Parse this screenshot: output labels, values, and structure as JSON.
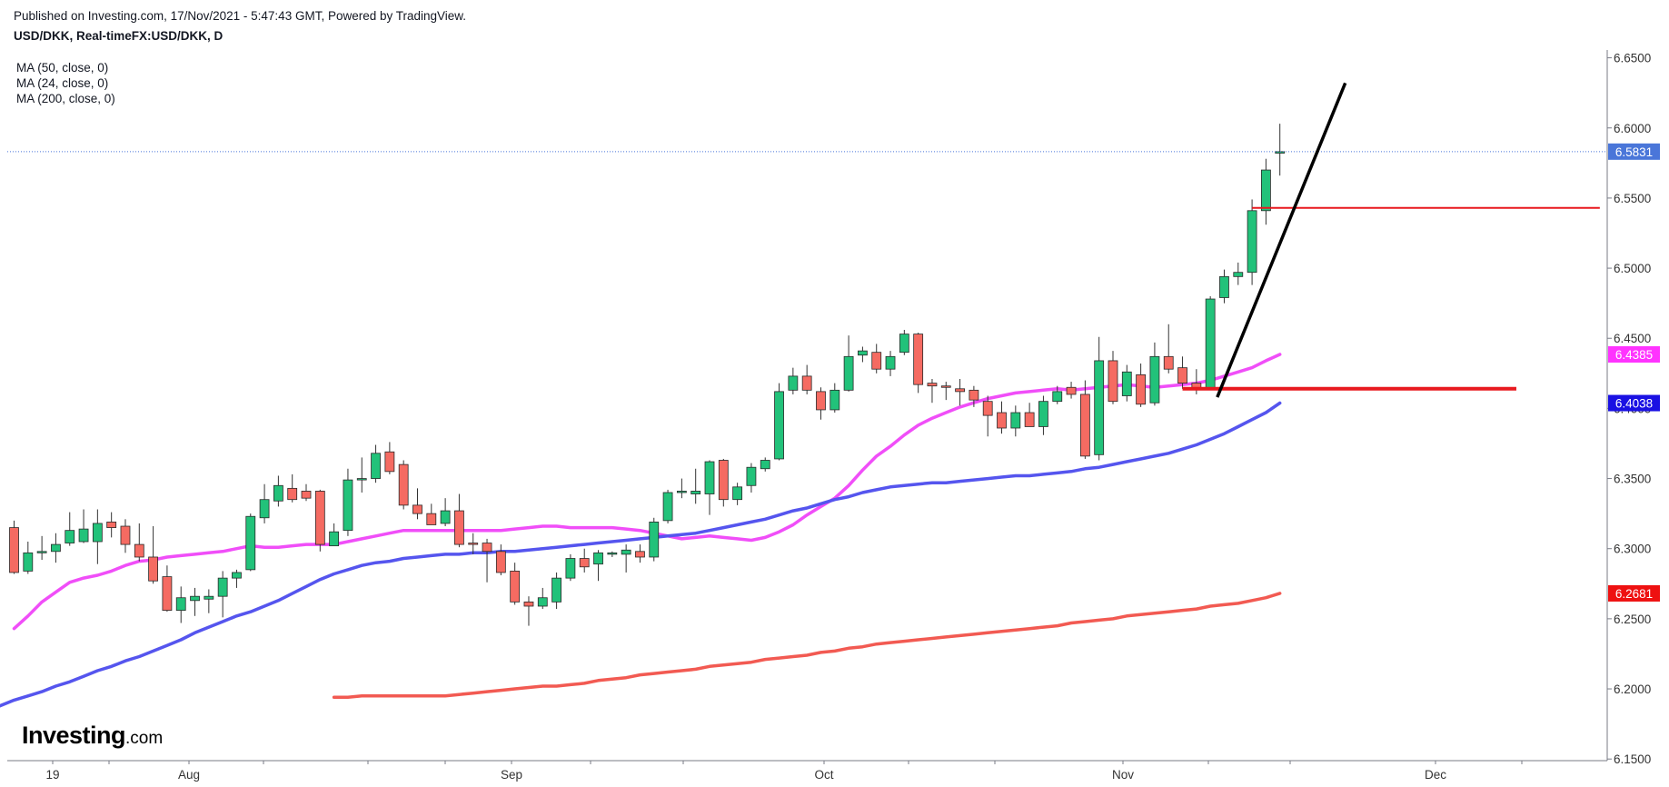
{
  "header": {
    "published": "Published on Investing.com, 17/Nov/2021 - 5:47:43 GMT, Powered by TradingView.",
    "symbol": "USD/DKK, Real-timeFX:USD/DKK, D"
  },
  "legend": {
    "ma50": "MA (50, close, 0)",
    "ma24": "MA (24, close, 0)",
    "ma200": "MA (200, close, 0)"
  },
  "brand": {
    "name": "Investing",
    "domain": ".com"
  },
  "colors": {
    "up": "#22c27a",
    "down": "#f56b62",
    "ma24": "#f04ef8",
    "ma50": "#5555ee",
    "ma200": "#f25a52",
    "price_tag": "#4a76d9",
    "support": "#e8191f",
    "trend": "#000000"
  },
  "chart_data": {
    "type": "candlestick",
    "symbol": "USD/DKK",
    "timeframe": "D",
    "ylim": [
      6.15,
      6.65
    ],
    "y_ticks": [
      "6.1500",
      "6.2000",
      "6.2500",
      "6.3000",
      "6.3500",
      "6.4000",
      "6.4500",
      "6.5000",
      "6.5500",
      "6.6000",
      "6.6500"
    ],
    "x_tick_labels": [
      "19",
      "Aug",
      "Sep",
      "Oct",
      "Nov",
      "Dec"
    ],
    "candles": [
      {
        "o": 6.315,
        "h": 6.32,
        "l": 6.282,
        "c": 6.283
      },
      {
        "o": 6.284,
        "h": 6.305,
        "l": 6.282,
        "c": 6.297
      },
      {
        "o": 6.297,
        "h": 6.309,
        "l": 6.292,
        "c": 6.298
      },
      {
        "o": 6.298,
        "h": 6.311,
        "l": 6.29,
        "c": 6.303
      },
      {
        "o": 6.304,
        "h": 6.326,
        "l": 6.302,
        "c": 6.313
      },
      {
        "o": 6.305,
        "h": 6.328,
        "l": 6.304,
        "c": 6.314
      },
      {
        "o": 6.305,
        "h": 6.328,
        "l": 6.289,
        "c": 6.318
      },
      {
        "o": 6.319,
        "h": 6.326,
        "l": 6.308,
        "c": 6.315
      },
      {
        "o": 6.316,
        "h": 6.321,
        "l": 6.297,
        "c": 6.303
      },
      {
        "o": 6.303,
        "h": 6.318,
        "l": 6.291,
        "c": 6.294
      },
      {
        "o": 6.294,
        "h": 6.316,
        "l": 6.275,
        "c": 6.277
      },
      {
        "o": 6.28,
        "h": 6.288,
        "l": 6.255,
        "c": 6.256
      },
      {
        "o": 6.256,
        "h": 6.273,
        "l": 6.247,
        "c": 6.265
      },
      {
        "o": 6.263,
        "h": 6.272,
        "l": 6.252,
        "c": 6.266
      },
      {
        "o": 6.264,
        "h": 6.271,
        "l": 6.254,
        "c": 6.266
      },
      {
        "o": 6.266,
        "h": 6.284,
        "l": 6.251,
        "c": 6.279
      },
      {
        "o": 6.279,
        "h": 6.285,
        "l": 6.272,
        "c": 6.283
      },
      {
        "o": 6.285,
        "h": 6.325,
        "l": 6.284,
        "c": 6.323
      },
      {
        "o": 6.322,
        "h": 6.346,
        "l": 6.318,
        "c": 6.335
      },
      {
        "o": 6.334,
        "h": 6.352,
        "l": 6.33,
        "c": 6.345
      },
      {
        "o": 6.343,
        "h": 6.353,
        "l": 6.333,
        "c": 6.335
      },
      {
        "o": 6.341,
        "h": 6.346,
        "l": 6.334,
        "c": 6.336
      },
      {
        "o": 6.341,
        "h": 6.342,
        "l": 6.298,
        "c": 6.303
      },
      {
        "o": 6.302,
        "h": 6.318,
        "l": 6.302,
        "c": 6.312
      },
      {
        "o": 6.313,
        "h": 6.357,
        "l": 6.309,
        "c": 6.349
      },
      {
        "o": 6.349,
        "h": 6.365,
        "l": 6.34,
        "c": 6.35
      },
      {
        "o": 6.35,
        "h": 6.374,
        "l": 6.347,
        "c": 6.368
      },
      {
        "o": 6.369,
        "h": 6.376,
        "l": 6.353,
        "c": 6.355
      },
      {
        "o": 6.36,
        "h": 6.363,
        "l": 6.328,
        "c": 6.331
      },
      {
        "o": 6.331,
        "h": 6.343,
        "l": 6.321,
        "c": 6.325
      },
      {
        "o": 6.325,
        "h": 6.332,
        "l": 6.317,
        "c": 6.317
      },
      {
        "o": 6.318,
        "h": 6.336,
        "l": 6.316,
        "c": 6.327
      },
      {
        "o": 6.327,
        "h": 6.339,
        "l": 6.301,
        "c": 6.303
      },
      {
        "o": 6.304,
        "h": 6.311,
        "l": 6.296,
        "c": 6.303
      },
      {
        "o": 6.304,
        "h": 6.307,
        "l": 6.276,
        "c": 6.298
      },
      {
        "o": 6.298,
        "h": 6.303,
        "l": 6.281,
        "c": 6.283
      },
      {
        "o": 6.284,
        "h": 6.29,
        "l": 6.26,
        "c": 6.262
      },
      {
        "o": 6.262,
        "h": 6.266,
        "l": 6.245,
        "c": 6.259
      },
      {
        "o": 6.259,
        "h": 6.272,
        "l": 6.257,
        "c": 6.265
      },
      {
        "o": 6.262,
        "h": 6.283,
        "l": 6.257,
        "c": 6.279
      },
      {
        "o": 6.279,
        "h": 6.296,
        "l": 6.277,
        "c": 6.293
      },
      {
        "o": 6.293,
        "h": 6.3,
        "l": 6.283,
        "c": 6.287
      },
      {
        "o": 6.289,
        "h": 6.299,
        "l": 6.277,
        "c": 6.297
      },
      {
        "o": 6.296,
        "h": 6.298,
        "l": 6.294,
        "c": 6.297
      },
      {
        "o": 6.296,
        "h": 6.303,
        "l": 6.283,
        "c": 6.299
      },
      {
        "o": 6.298,
        "h": 6.303,
        "l": 6.29,
        "c": 6.294
      },
      {
        "o": 6.294,
        "h": 6.322,
        "l": 6.291,
        "c": 6.319
      },
      {
        "o": 6.32,
        "h": 6.342,
        "l": 6.318,
        "c": 6.34
      },
      {
        "o": 6.34,
        "h": 6.35,
        "l": 6.336,
        "c": 6.341
      },
      {
        "o": 6.339,
        "h": 6.357,
        "l": 6.332,
        "c": 6.341
      },
      {
        "o": 6.339,
        "h": 6.363,
        "l": 6.324,
        "c": 6.362
      },
      {
        "o": 6.363,
        "h": 6.364,
        "l": 6.33,
        "c": 6.335
      },
      {
        "o": 6.335,
        "h": 6.347,
        "l": 6.331,
        "c": 6.344
      },
      {
        "o": 6.345,
        "h": 6.361,
        "l": 6.34,
        "c": 6.358
      },
      {
        "o": 6.357,
        "h": 6.365,
        "l": 6.355,
        "c": 6.363
      },
      {
        "o": 6.364,
        "h": 6.418,
        "l": 6.363,
        "c": 6.412
      },
      {
        "o": 6.413,
        "h": 6.429,
        "l": 6.41,
        "c": 6.423
      },
      {
        "o": 6.423,
        "h": 6.431,
        "l": 6.41,
        "c": 6.413
      },
      {
        "o": 6.412,
        "h": 6.415,
        "l": 6.392,
        "c": 6.399
      },
      {
        "o": 6.399,
        "h": 6.418,
        "l": 6.397,
        "c": 6.413
      },
      {
        "o": 6.413,
        "h": 6.452,
        "l": 6.412,
        "c": 6.437
      },
      {
        "o": 6.438,
        "h": 6.444,
        "l": 6.433,
        "c": 6.441
      },
      {
        "o": 6.44,
        "h": 6.446,
        "l": 6.425,
        "c": 6.428
      },
      {
        "o": 6.428,
        "h": 6.441,
        "l": 6.423,
        "c": 6.437
      },
      {
        "o": 6.44,
        "h": 6.456,
        "l": 6.438,
        "c": 6.453
      },
      {
        "o": 6.453,
        "h": 6.454,
        "l": 6.411,
        "c": 6.417
      },
      {
        "o": 6.418,
        "h": 6.421,
        "l": 6.404,
        "c": 6.416
      },
      {
        "o": 6.416,
        "h": 6.419,
        "l": 6.406,
        "c": 6.415
      },
      {
        "o": 6.414,
        "h": 6.421,
        "l": 6.402,
        "c": 6.412
      },
      {
        "o": 6.413,
        "h": 6.416,
        "l": 6.401,
        "c": 6.406
      },
      {
        "o": 6.405,
        "h": 6.409,
        "l": 6.38,
        "c": 6.395
      },
      {
        "o": 6.397,
        "h": 6.405,
        "l": 6.382,
        "c": 6.386
      },
      {
        "o": 6.386,
        "h": 6.402,
        "l": 6.38,
        "c": 6.397
      },
      {
        "o": 6.397,
        "h": 6.404,
        "l": 6.389,
        "c": 6.387
      },
      {
        "o": 6.387,
        "h": 6.409,
        "l": 6.381,
        "c": 6.405
      },
      {
        "o": 6.405,
        "h": 6.416,
        "l": 6.403,
        "c": 6.412
      },
      {
        "o": 6.415,
        "h": 6.419,
        "l": 6.407,
        "c": 6.41
      },
      {
        "o": 6.41,
        "h": 6.42,
        "l": 6.364,
        "c": 6.366
      },
      {
        "o": 6.367,
        "h": 6.451,
        "l": 6.363,
        "c": 6.434
      },
      {
        "o": 6.434,
        "h": 6.441,
        "l": 6.403,
        "c": 6.405
      },
      {
        "o": 6.409,
        "h": 6.431,
        "l": 6.405,
        "c": 6.426
      },
      {
        "o": 6.424,
        "h": 6.432,
        "l": 6.401,
        "c": 6.403
      },
      {
        "o": 6.404,
        "h": 6.447,
        "l": 6.402,
        "c": 6.437
      },
      {
        "o": 6.437,
        "h": 6.46,
        "l": 6.425,
        "c": 6.428
      },
      {
        "o": 6.429,
        "h": 6.437,
        "l": 6.414,
        "c": 6.418
      },
      {
        "o": 6.418,
        "h": 6.428,
        "l": 6.41,
        "c": 6.414
      },
      {
        "o": 6.414,
        "h": 6.48,
        "l": 6.413,
        "c": 6.478
      },
      {
        "o": 6.479,
        "h": 6.499,
        "l": 6.475,
        "c": 6.494
      },
      {
        "o": 6.494,
        "h": 6.504,
        "l": 6.488,
        "c": 6.497
      },
      {
        "o": 6.497,
        "h": 6.549,
        "l": 6.488,
        "c": 6.541
      },
      {
        "o": 6.541,
        "h": 6.578,
        "l": 6.531,
        "c": 6.57
      },
      {
        "o": 6.582,
        "h": 6.603,
        "l": 6.566,
        "c": 6.5831
      }
    ],
    "ma24": [
      6.243,
      6.252,
      6.262,
      6.269,
      6.276,
      6.279,
      6.281,
      6.284,
      6.288,
      6.291,
      6.292,
      6.294,
      6.295,
      6.296,
      6.297,
      6.298,
      6.3,
      6.302,
      6.301,
      6.301,
      6.302,
      6.303,
      6.303,
      6.303,
      6.305,
      6.307,
      6.309,
      6.311,
      6.313,
      6.313,
      6.313,
      6.313,
      6.313,
      6.313,
      6.313,
      6.313,
      6.314,
      6.315,
      6.316,
      6.316,
      6.315,
      6.315,
      6.315,
      6.315,
      6.314,
      6.313,
      6.311,
      6.309,
      6.307,
      6.308,
      6.309,
      6.308,
      6.307,
      6.306,
      6.308,
      6.312,
      6.317,
      6.324,
      6.33,
      6.336,
      6.345,
      6.356,
      6.366,
      6.373,
      6.381,
      6.388,
      6.393,
      6.397,
      6.401,
      6.404,
      6.407,
      6.409,
      6.411,
      6.412,
      6.413,
      6.414,
      6.413,
      6.414,
      6.415,
      6.416,
      6.417,
      6.416,
      6.415,
      6.416,
      6.417,
      6.418,
      6.42,
      6.423,
      6.426,
      6.429,
      6.434,
      6.4385
    ],
    "ma50": [
      6.172,
      6.176,
      6.18,
      6.184,
      6.188,
      6.192,
      6.195,
      6.198,
      6.202,
      6.205,
      6.209,
      6.213,
      6.216,
      6.22,
      6.223,
      6.227,
      6.231,
      6.235,
      6.24,
      6.244,
      6.248,
      6.252,
      6.255,
      6.259,
      6.263,
      6.268,
      6.273,
      6.278,
      6.282,
      6.285,
      6.288,
      6.29,
      6.291,
      6.293,
      6.294,
      6.295,
      6.296,
      6.296,
      6.297,
      6.297,
      6.298,
      6.298,
      6.299,
      6.3,
      6.301,
      6.302,
      6.303,
      6.304,
      6.305,
      6.306,
      6.307,
      6.308,
      6.309,
      6.31,
      6.311,
      6.313,
      6.315,
      6.317,
      6.319,
      6.321,
      6.324,
      6.327,
      6.329,
      6.332,
      6.335,
      6.337,
      6.34,
      6.342,
      6.344,
      6.345,
      6.346,
      6.347,
      6.347,
      6.348,
      6.349,
      6.35,
      6.351,
      6.352,
      6.352,
      6.353,
      6.354,
      6.355,
      6.357,
      6.358,
      6.36,
      6.362,
      6.364,
      6.366,
      6.368,
      6.371,
      6.374,
      6.378,
      6.382,
      6.387,
      6.392,
      6.397,
      6.4038
    ],
    "ma200": [
      6.194,
      6.194,
      6.195,
      6.195,
      6.195,
      6.195,
      6.195,
      6.195,
      6.195,
      6.196,
      6.197,
      6.198,
      6.199,
      6.2,
      6.201,
      6.202,
      6.202,
      6.203,
      6.204,
      6.206,
      6.207,
      6.208,
      6.21,
      6.211,
      6.212,
      6.213,
      6.214,
      6.216,
      6.217,
      6.218,
      6.219,
      6.221,
      6.222,
      6.223,
      6.224,
      6.226,
      6.227,
      6.229,
      6.23,
      6.232,
      6.233,
      6.234,
      6.235,
      6.236,
      6.237,
      6.238,
      6.239,
      6.24,
      6.241,
      6.242,
      6.243,
      6.244,
      6.245,
      6.247,
      6.248,
      6.249,
      6.25,
      6.252,
      6.253,
      6.254,
      6.255,
      6.256,
      6.257,
      6.259,
      6.26,
      6.261,
      6.263,
      6.265,
      6.2681
    ],
    "last_price": 6.5831,
    "price_tags": [
      {
        "label": "6.5831",
        "value": 6.5831,
        "color": "#4a76d9"
      },
      {
        "label": "6.4385",
        "value": 6.4385,
        "color": "#ff33ff"
      },
      {
        "label": "6.4038",
        "value": 6.4038,
        "color": "#1a11e3"
      },
      {
        "label": "6.2681",
        "value": 6.2681,
        "color": "#ee1111"
      }
    ],
    "drawings": {
      "support_line": {
        "value": 6.414,
        "from_candle": 84,
        "to_candle": 108
      },
      "resistance_line": {
        "value": 6.543,
        "from_candle": 89,
        "to_candle": 114
      },
      "trend_line": {
        "from": {
          "candle": 86.5,
          "value": 6.408
        },
        "to": {
          "candle": 95.7,
          "value": 6.632
        }
      }
    }
  }
}
